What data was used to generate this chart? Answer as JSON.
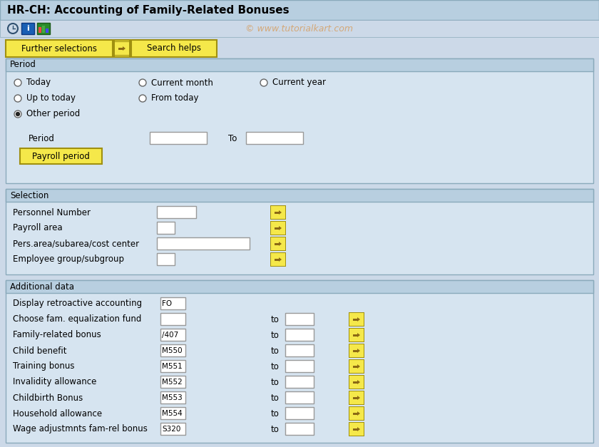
{
  "title": "HR-CH: Accounting of Family-Related Bonuses",
  "watermark": "© www.tutorialkart.com",
  "bg_color": "#ccd9e8",
  "panel_bg": "#d6e4f0",
  "title_bg": "#b8cfe0",
  "section_header_bg": "#b8cfe0",
  "toolbar_bg": "#ccd9e8",
  "button_bg": "#f5e84a",
  "button_border": "#a09010",
  "border_color": "#8aaabb",
  "input_bg": "#ffffff",
  "period_radios": [
    {
      "label": "Today",
      "col": 0,
      "row": 0,
      "selected": false
    },
    {
      "label": "Up to today",
      "col": 0,
      "row": 1,
      "selected": false
    },
    {
      "label": "Other period",
      "col": 0,
      "row": 2,
      "selected": true
    },
    {
      "label": "Current month",
      "col": 1,
      "row": 0,
      "selected": false
    },
    {
      "label": "From today",
      "col": 1,
      "row": 1,
      "selected": false
    },
    {
      "label": "Current year",
      "col": 2,
      "row": 0,
      "selected": false
    }
  ],
  "selection_fields": [
    {
      "label": "Personnel Number",
      "iw": 55,
      "has_arrow": true
    },
    {
      "label": "Payroll area",
      "iw": 25,
      "has_arrow": true
    },
    {
      "label": "Pers.area/subarea/cost center",
      "iw": 130,
      "has_arrow": true
    },
    {
      "label": "Employee group/subgroup",
      "iw": 25,
      "has_arrow": true
    }
  ],
  "additional_fields": [
    {
      "label": "Display retroactive accounting",
      "value": "FO",
      "has_to": false,
      "has_arrow": false
    },
    {
      "label": "Choose fam. equalization fund",
      "value": "",
      "has_to": true,
      "has_arrow": true
    },
    {
      "label": "Family-related bonus",
      "value": "/407",
      "has_to": true,
      "has_arrow": true
    },
    {
      "label": "Child benefit",
      "value": "M550",
      "has_to": true,
      "has_arrow": true
    },
    {
      "label": "Training bonus",
      "value": "M551",
      "has_to": true,
      "has_arrow": true
    },
    {
      "label": "Invalidity allowance",
      "value": "M552",
      "has_to": true,
      "has_arrow": true
    },
    {
      "label": "Childbirth Bonus",
      "value": "M553",
      "has_to": true,
      "has_arrow": true
    },
    {
      "label": "Household allowance",
      "value": "M554",
      "has_to": true,
      "has_arrow": true
    },
    {
      "label": "Wage adjustmnts fam-rel bonus",
      "value": "S320",
      "has_to": true,
      "has_arrow": true
    }
  ]
}
